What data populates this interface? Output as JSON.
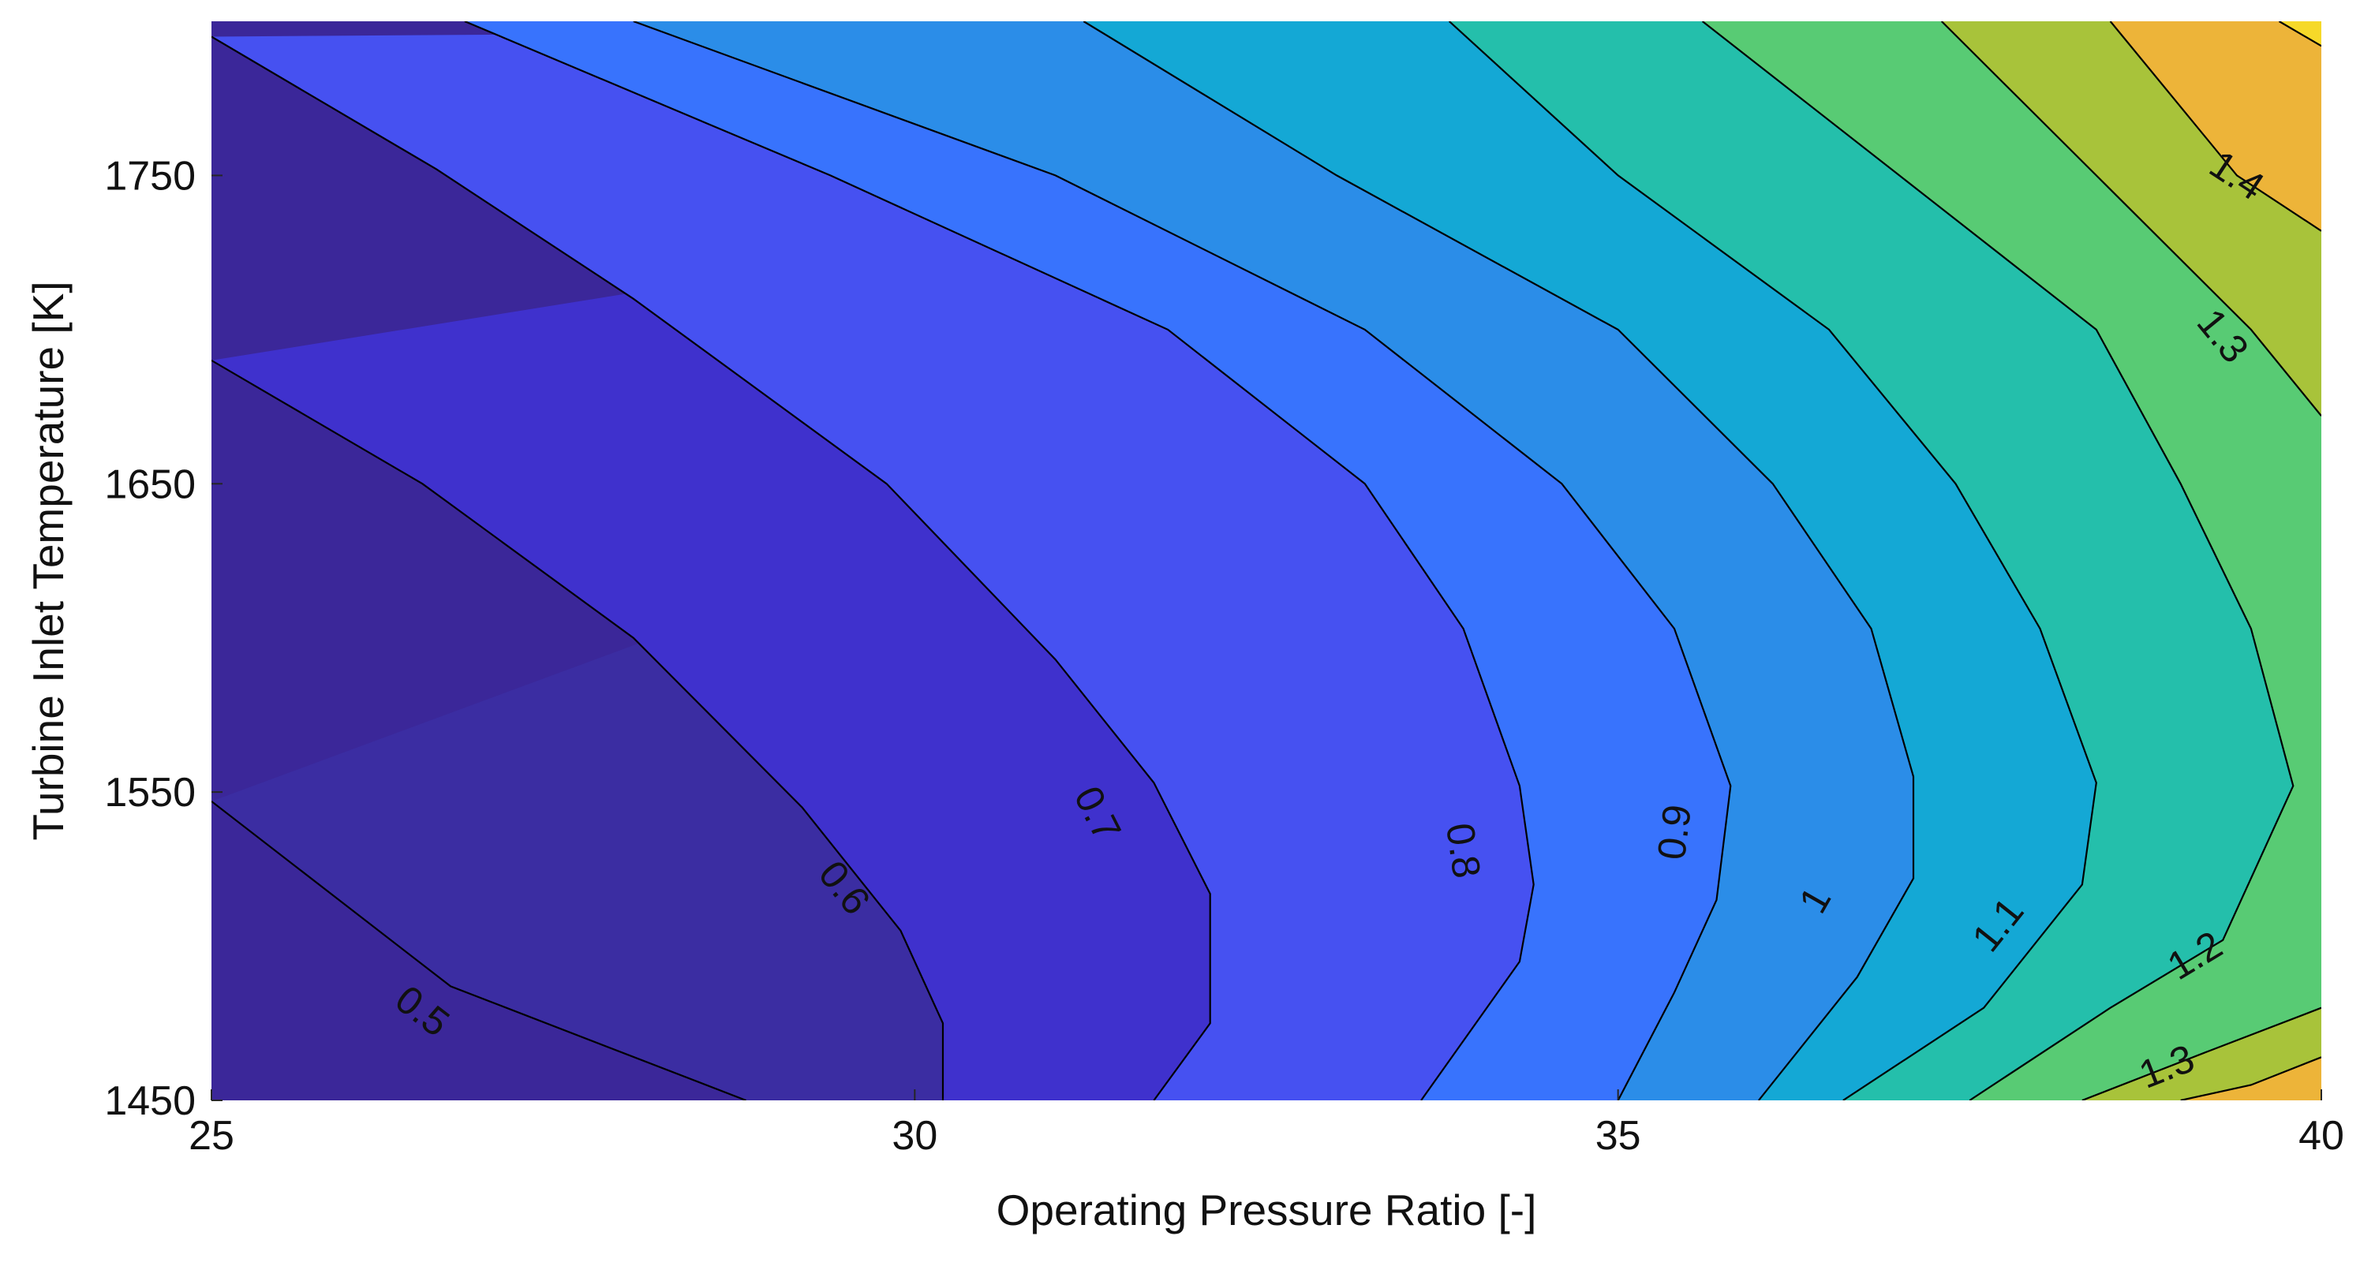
{
  "chart_data": {
    "type": "contour",
    "title": "",
    "xlabel": "Operating Pressure Ratio [-]",
    "ylabel": "Turbine Inlet Temperature [K]",
    "xlim": [
      25,
      40
    ],
    "ylim": [
      1450,
      1800
    ],
    "xticks": [
      "25",
      "30",
      "35",
      "40"
    ],
    "yticks": [
      "1450",
      "1550",
      "1650",
      "1750"
    ],
    "grid": false,
    "legend": "none",
    "colormap": "parula",
    "z_range": [
      0.45,
      1.5
    ],
    "levels": [
      {
        "value": 0.5,
        "label": "0.5",
        "color": "#3b2da2",
        "points": [
          [
            25.0,
            1547
          ],
          [
            26.7,
            1487
          ],
          [
            28.8,
            1450
          ]
        ]
      },
      {
        "value": 0.6,
        "label": "0.6",
        "color": "#3f31cd",
        "points": [
          [
            25.0,
            1690
          ],
          [
            26.5,
            1650
          ],
          [
            28.0,
            1600
          ],
          [
            29.2,
            1545
          ],
          [
            29.9,
            1505
          ],
          [
            30.2,
            1475
          ],
          [
            30.2,
            1450
          ]
        ]
      },
      {
        "value": 0.7,
        "label": "0.7",
        "color": "#4651f1",
        "points": [
          [
            25.0,
            1795
          ],
          [
            26.6,
            1752
          ],
          [
            28.0,
            1710
          ],
          [
            29.8,
            1650
          ],
          [
            31.0,
            1593
          ],
          [
            31.7,
            1553
          ],
          [
            32.1,
            1517
          ],
          [
            32.1,
            1475
          ],
          [
            31.7,
            1450
          ]
        ]
      },
      {
        "value": 0.8,
        "label": "0.8",
        "color": "#3873fd",
        "points": [
          [
            26.8,
            1800
          ],
          [
            29.4,
            1750
          ],
          [
            31.8,
            1700
          ],
          [
            33.2,
            1650
          ],
          [
            33.9,
            1603
          ],
          [
            34.3,
            1552
          ],
          [
            34.4,
            1520
          ],
          [
            34.3,
            1495
          ],
          [
            33.6,
            1450
          ]
        ]
      },
      {
        "value": 0.9,
        "label": "0.9",
        "color": "#2b8de8",
        "points": [
          [
            28.0,
            1800
          ],
          [
            31.0,
            1750
          ],
          [
            33.2,
            1700
          ],
          [
            34.6,
            1650
          ],
          [
            35.4,
            1603
          ],
          [
            35.8,
            1552
          ],
          [
            35.7,
            1515
          ],
          [
            35.4,
            1485
          ],
          [
            35.0,
            1450
          ]
        ]
      },
      {
        "value": 1.0,
        "label": "1",
        "color": "#14a8d5",
        "points": [
          [
            31.2,
            1800
          ],
          [
            33.0,
            1750
          ],
          [
            35.0,
            1700
          ],
          [
            36.1,
            1650
          ],
          [
            36.8,
            1603
          ],
          [
            37.1,
            1555
          ],
          [
            37.1,
            1522
          ],
          [
            36.7,
            1490
          ],
          [
            36.0,
            1450
          ]
        ]
      },
      {
        "value": 1.1,
        "label": "1.1",
        "color": "#24bfab",
        "points": [
          [
            33.8,
            1800
          ],
          [
            35.0,
            1750
          ],
          [
            36.5,
            1700
          ],
          [
            37.4,
            1650
          ],
          [
            38.0,
            1603
          ],
          [
            38.4,
            1553
          ],
          [
            38.3,
            1520
          ],
          [
            37.6,
            1480
          ],
          [
            36.6,
            1450
          ]
        ]
      },
      {
        "value": 1.2,
        "label": "1.2",
        "color": "#58cb74",
        "points": [
          [
            35.6,
            1800
          ],
          [
            37.0,
            1750
          ],
          [
            38.4,
            1700
          ],
          [
            39.0,
            1650
          ],
          [
            39.5,
            1603
          ],
          [
            39.8,
            1552
          ],
          [
            39.3,
            1502
          ],
          [
            38.5,
            1480
          ],
          [
            37.5,
            1450
          ]
        ]
      },
      {
        "value": 1.3,
        "label": "1.3",
        "color": "#a8c33a",
        "points": [
          [
            37.3,
            1800
          ],
          [
            38.4,
            1750
          ],
          [
            39.5,
            1700
          ],
          [
            40.0,
            1672
          ]
        ],
        "points2": [
          [
            40.0,
            1480
          ],
          [
            39.2,
            1466
          ],
          [
            38.3,
            1450
          ]
        ]
      },
      {
        "value": 1.4,
        "label": "1.4",
        "color": "#edb439",
        "points": [
          [
            38.5,
            1800
          ],
          [
            39.4,
            1750
          ],
          [
            40.0,
            1732
          ]
        ],
        "points2": [
          [
            40.0,
            1464
          ],
          [
            39.5,
            1455
          ],
          [
            39.0,
            1450
          ]
        ]
      },
      {
        "value": 1.5,
        "label": "",
        "color": "#f6d929",
        "points": [
          [
            39.7,
            1800
          ],
          [
            40.0,
            1792
          ]
        ]
      }
    ],
    "contour_labels": [
      {
        "text": "0.5",
        "x": 26.5,
        "y": 1479
      },
      {
        "text": "0.6",
        "x": 29.5,
        "y": 1519
      },
      {
        "text": "0.7",
        "x": 31.3,
        "y": 1543
      },
      {
        "text": "0.8",
        "x": 33.9,
        "y": 1531
      },
      {
        "text": "0.9",
        "x": 35.4,
        "y": 1537
      },
      {
        "text": "1",
        "x": 36.4,
        "y": 1515
      },
      {
        "text": "1.1",
        "x": 37.7,
        "y": 1507
      },
      {
        "text": "1.2",
        "x": 39.1,
        "y": 1497
      },
      {
        "text": "1.3",
        "x": 38.9,
        "y": 1461
      },
      {
        "text": "1.3",
        "x": 39.3,
        "y": 1698
      },
      {
        "text": "1.4",
        "x": 39.4,
        "y": 1750
      }
    ]
  }
}
